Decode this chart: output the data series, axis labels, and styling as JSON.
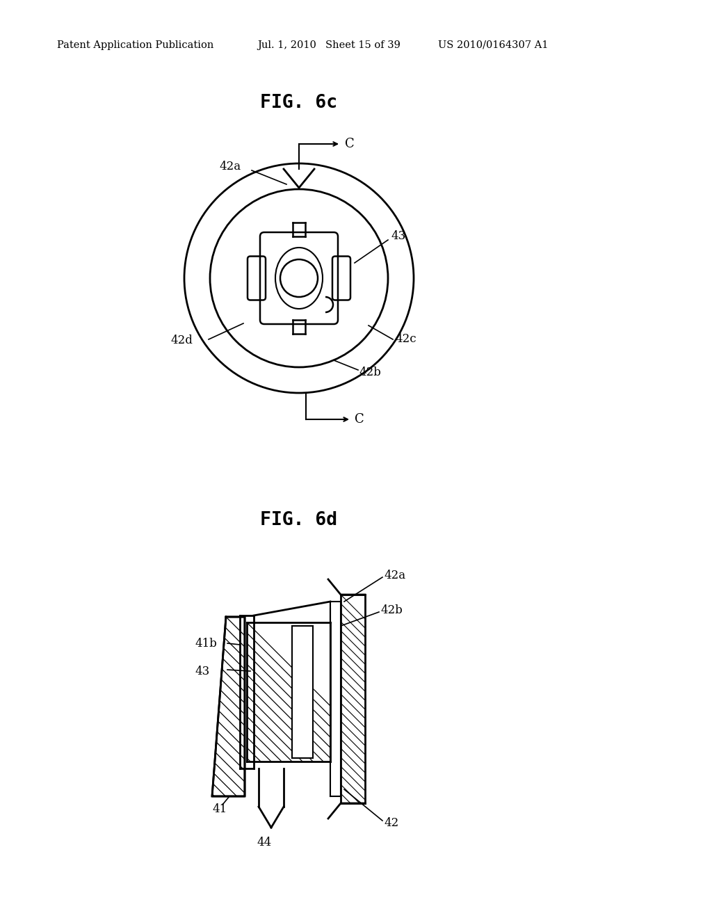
{
  "background_color": "#ffffff",
  "header_text": "Patent Application Publication",
  "header_date": "Jul. 1, 2010",
  "header_sheet": "Sheet 15 of 39",
  "header_patent": "US 2010/0164307 A1",
  "fig6c_title": "FIG. 6c",
  "fig6d_title": "FIG. 6d",
  "line_color": "#000000",
  "font_color": "#000000",
  "hatch_color": "#000000"
}
